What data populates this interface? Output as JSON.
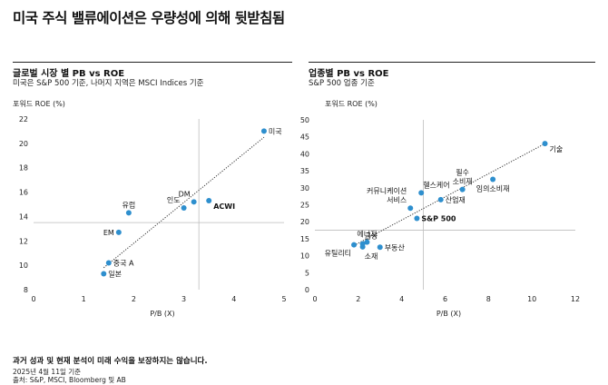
{
  "title": "미국 주식 밸류에이션은 우량성에 의해 뒷받침됨",
  "left": {
    "title": "글로벌 시장 별 PB vs ROE",
    "subtitle": "미국은 S&P 500 기준, 나머지 지역은 MSCI Indices 기준",
    "ylabel": "포워드 ROE (%)"
  },
  "right": {
    "title": "업종별 PB vs ROE",
    "subtitle": "S&P 500 업종 기준",
    "ylabel": "포워드 ROE (%)"
  },
  "colors": {
    "point": "#2e8fce",
    "axis": "#999999",
    "ref": "#bdbdbd",
    "trend": "#333333"
  },
  "chart_data": [
    {
      "type": "scatter",
      "xlabel": "P/B (X)",
      "ylabel": "포워드 ROE (%)",
      "xlim": [
        0,
        5
      ],
      "ylim": [
        8,
        22
      ],
      "xticks": [
        0,
        1,
        2,
        3,
        4,
        5
      ],
      "yticks": [
        8,
        10,
        12,
        14,
        16,
        18,
        20,
        22
      ],
      "reference": {
        "x": 3.3,
        "y": 13.5
      },
      "trendline": {
        "x": [
          1.4,
          4.6
        ],
        "y": [
          9.8,
          20.5
        ]
      },
      "points": [
        {
          "label": "미국",
          "x": 4.6,
          "y": 21.0,
          "pos": "right",
          "bold": false
        },
        {
          "label": "유럽",
          "x": 1.9,
          "y": 14.3,
          "pos": "above",
          "bold": false
        },
        {
          "label": "EM",
          "x": 1.7,
          "y": 12.7,
          "pos": "left",
          "bold": false
        },
        {
          "label": "중국 A",
          "x": 1.5,
          "y": 10.2,
          "pos": "right",
          "bold": false
        },
        {
          "label": "일본",
          "x": 1.4,
          "y": 9.3,
          "pos": "right",
          "bold": false
        },
        {
          "label": "인도",
          "x": 3.0,
          "y": 14.7,
          "pos": "above-left",
          "bold": false
        },
        {
          "label": "DM",
          "x": 3.2,
          "y": 15.2,
          "pos": "above-left",
          "bold": false
        },
        {
          "label": "ACWI",
          "x": 3.5,
          "y": 15.3,
          "pos": "right-below",
          "bold": true
        }
      ]
    },
    {
      "type": "scatter",
      "xlabel": "P/B (X)",
      "ylabel": "포워드 ROE (%)",
      "xlim": [
        0,
        12
      ],
      "ylim": [
        0,
        50
      ],
      "xticks": [
        0,
        2,
        4,
        6,
        8,
        10,
        12
      ],
      "yticks": [
        0,
        5,
        10,
        15,
        20,
        25,
        30,
        35,
        40,
        45,
        50
      ],
      "reference": {
        "x": 5.0,
        "y": 17.5
      },
      "trendline": {
        "x": [
          1.8,
          10.6
        ],
        "y": [
          13.0,
          43.0
        ]
      },
      "points": [
        {
          "label": "기술",
          "x": 10.6,
          "y": 43.0,
          "pos": "right-below",
          "bold": false
        },
        {
          "label": "임의소비재",
          "x": 8.2,
          "y": 32.5,
          "pos": "below",
          "bold": false
        },
        {
          "label": "필수\n소비재",
          "x": 6.8,
          "y": 29.5,
          "pos": "above",
          "bold": false
        },
        {
          "label": "헬스케어",
          "x": 4.9,
          "y": 28.5,
          "pos": "above-right",
          "bold": false
        },
        {
          "label": "산업재",
          "x": 5.8,
          "y": 26.5,
          "pos": "right",
          "bold": false
        },
        {
          "label": "커뮤니케이션\n서비스",
          "x": 4.4,
          "y": 24.0,
          "pos": "above-left",
          "bold": false
        },
        {
          "label": "S&P 500",
          "x": 4.7,
          "y": 21.0,
          "pos": "right",
          "bold": true
        },
        {
          "label": "에너지",
          "x": 2.4,
          "y": 14.0,
          "pos": "above",
          "bold": false
        },
        {
          "label": "금융",
          "x": 2.2,
          "y": 13.5,
          "pos": "above-right",
          "bold": false
        },
        {
          "label": "유틸리티",
          "x": 1.8,
          "y": 13.2,
          "pos": "below-left",
          "bold": false
        },
        {
          "label": "소재",
          "x": 2.2,
          "y": 12.6,
          "pos": "below-right",
          "bold": false
        },
        {
          "label": "부동산",
          "x": 3.0,
          "y": 12.5,
          "pos": "right",
          "bold": false
        }
      ]
    }
  ],
  "footer": {
    "note": "과거 성과 및 현재 분석이 미래 수익을 보장하지는 않습니다.",
    "date": "2025년 4월 11일 기준",
    "source": "출처: S&P, MSCI, Bloomberg 및 AB"
  }
}
